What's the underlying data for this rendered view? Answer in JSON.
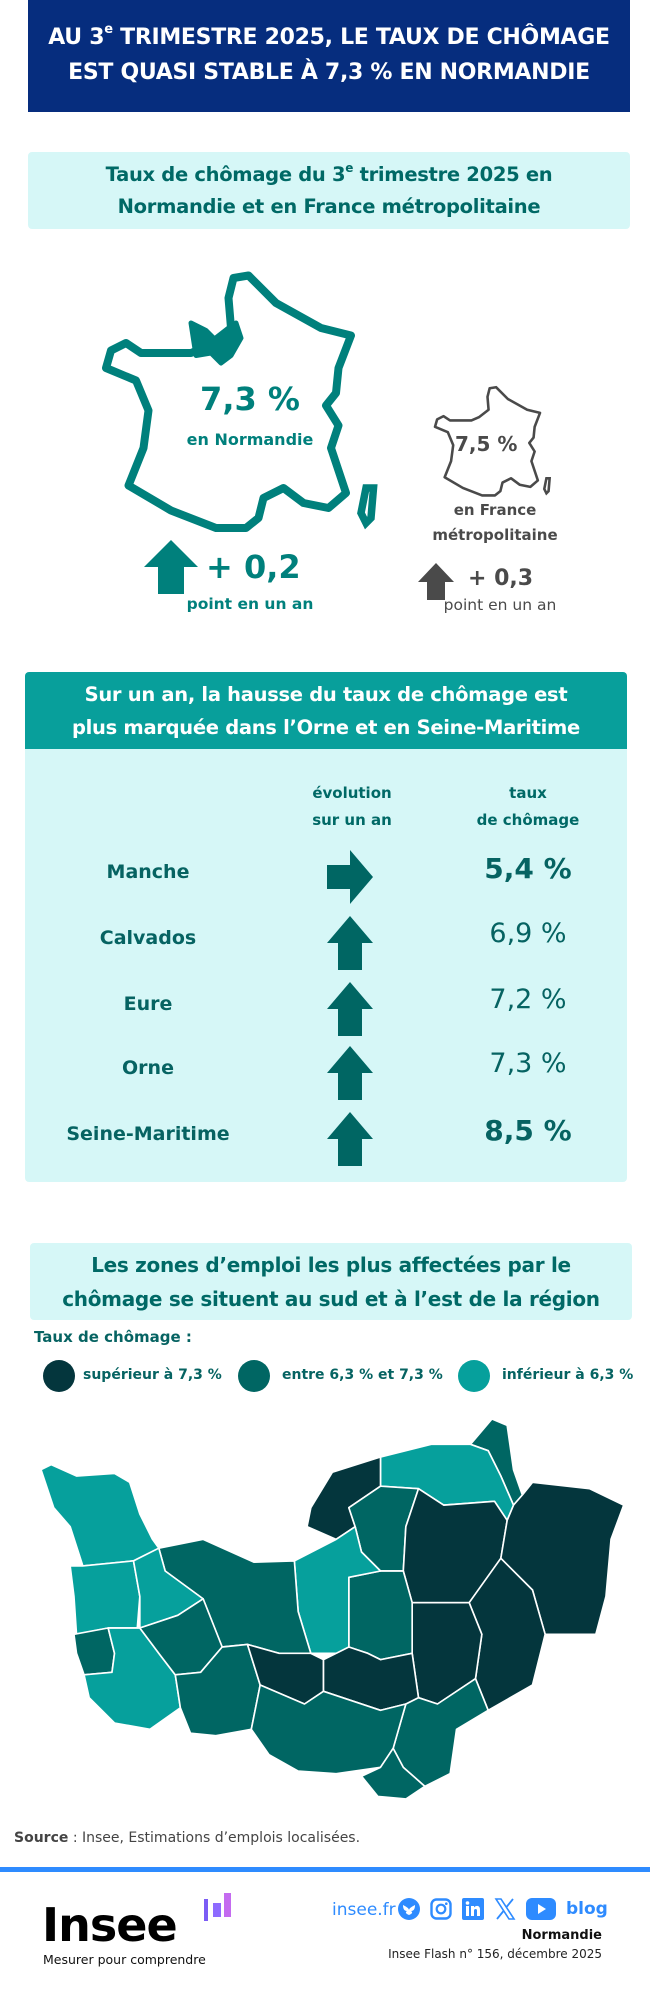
{
  "header": {
    "title_line1_pre": "AU 3",
    "title_sup": "e",
    "title_line1_post": " TRIMESTRE 2025, LE TAUX DE CHÔMAGE",
    "title_line2": "EST QUASI STABLE À 7,3 % EN NORMANDIE",
    "bg_color": "#062d7e"
  },
  "section1": {
    "title_pre": "Taux de chômage du 3",
    "title_sup": "e",
    "title_post": " trimestre 2025 en",
    "title_line2": "Normandie et en France métropolitaine",
    "normandie": {
      "rate": "7,3 %",
      "label": "en Normandie",
      "change": "+ 0,2",
      "change_label": "point en un an",
      "trend": "up",
      "color": "#00807c"
    },
    "france": {
      "rate": "7,5 %",
      "label_line1": "en France",
      "label_line2": "métropolitaine",
      "change": "+ 0,3",
      "change_label": "point en un an",
      "trend": "up",
      "color": "#4a4a4a"
    }
  },
  "section2": {
    "title_line1": "Sur un an, la hausse du taux de chômage est",
    "title_line2": "plus marquée dans l’Orne et en Seine-Maritime",
    "col_evolution": [
      "évolution",
      "sur un an"
    ],
    "col_rate": [
      "taux",
      "de chômage"
    ],
    "rows": [
      {
        "name": "Manche",
        "trend": "right",
        "rate": "5,4 %",
        "bold": true
      },
      {
        "name": "Calvados",
        "trend": "up",
        "rate": "6,9 %",
        "bold": false
      },
      {
        "name": "Eure",
        "trend": "up",
        "rate": "7,2 %",
        "bold": false
      },
      {
        "name": "Orne",
        "trend": "up",
        "rate": "7,3 %",
        "bold": false
      },
      {
        "name": "Seine-Maritime",
        "trend": "up",
        "rate": "8,5 %",
        "bold": true
      }
    ]
  },
  "section3": {
    "title_line1": "Les zones d’emploi les plus affectées par le",
    "title_line2": "chômage se situent au sud et à l’est de la région",
    "legend_title": "Taux de chômage :",
    "legend": [
      {
        "label": "supérieur à 7,3 %",
        "color": "#04363d"
      },
      {
        "label": "entre 6,3 % et 7,3 %",
        "color": "#006663"
      },
      {
        "label": "inférieur à 6,3 %",
        "color": "#06a09c"
      }
    ]
  },
  "source": {
    "label": "Source",
    "text": " : Insee, Estimations d’emplois localisées."
  },
  "footer": {
    "logo": "Insee",
    "tagline": "Mesurer pour comprendre",
    "site": "insee.fr",
    "social_icons": [
      "bluesky-icon",
      "instagram-icon",
      "linkedin-icon",
      "x-icon",
      "youtube-icon",
      "blog-icon"
    ],
    "blog_label": "blog",
    "region": "Normandie",
    "publication": "Insee Flash n° 156, décembre 2025",
    "accent_color": "#2e8bff"
  }
}
